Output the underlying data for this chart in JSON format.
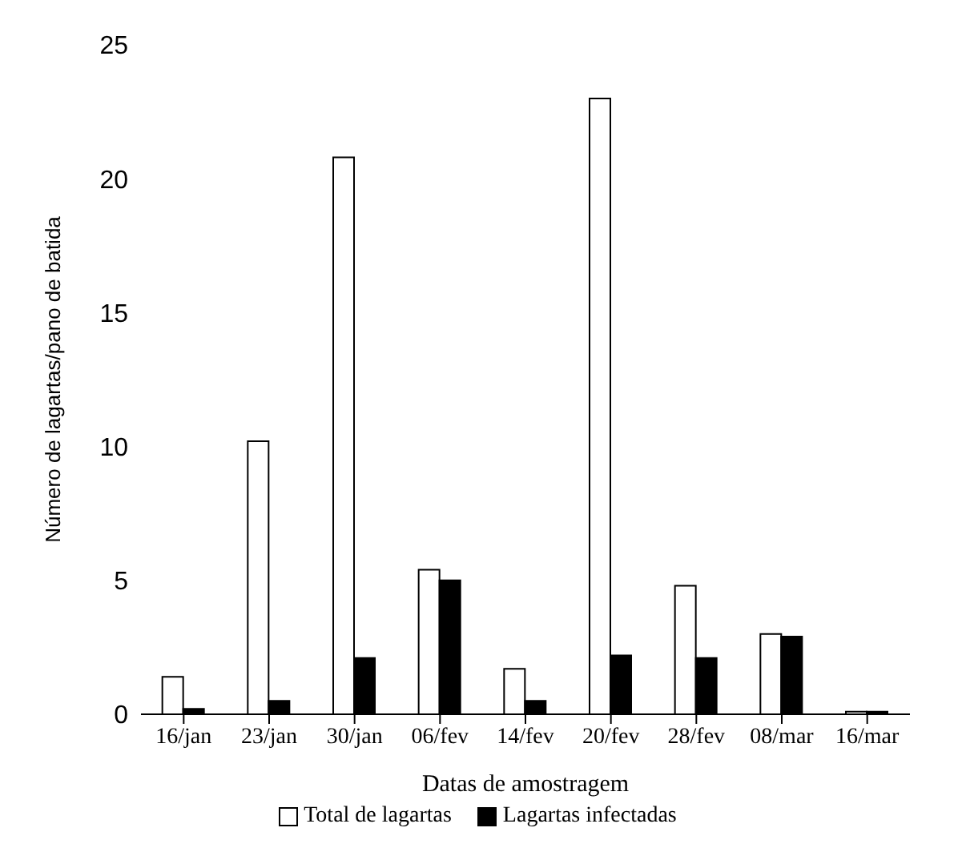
{
  "chart_data": {
    "type": "bar",
    "xlabel": "Datas de amostragem",
    "ylabel": "Número de lagartas/pano de batida",
    "categories": [
      "16/jan",
      "23/jan",
      "30/jan",
      "06/fev",
      "14/fev",
      "20/fev",
      "28/fev",
      "08/mar",
      "16/mar"
    ],
    "series": [
      {
        "name": "Total de lagartas",
        "color": "#ffffff",
        "values": [
          1.4,
          10.2,
          20.8,
          5.4,
          1.7,
          23,
          4.8,
          3,
          0.1
        ]
      },
      {
        "name": "Lagartas infectadas",
        "color": "#000000",
        "values": [
          0.2,
          0.5,
          2.1,
          5,
          0.5,
          2.2,
          2.1,
          2.9,
          0.1
        ]
      }
    ],
    "ylim": [
      0,
      25
    ],
    "yticks": [
      0,
      5,
      10,
      15,
      20,
      25
    ],
    "grid": false,
    "legend": "bottom"
  }
}
